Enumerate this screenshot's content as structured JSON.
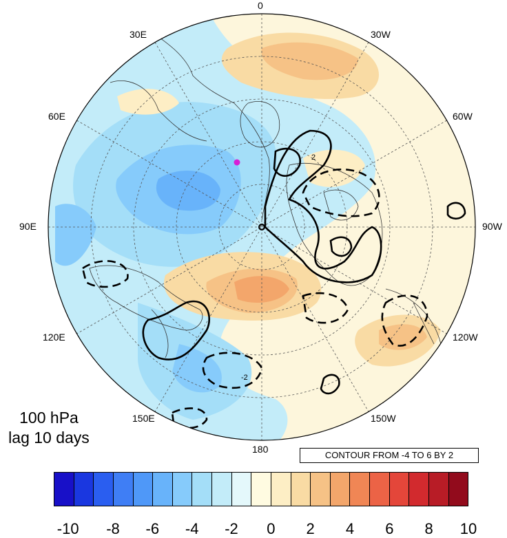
{
  "title_line1": "100 hPa",
  "title_line2": "lag 10 days",
  "contour_note": "CONTOUR FROM -4 TO 6 BY 2",
  "lon_labels": {
    "l0": "0",
    "l30w": "30W",
    "l60w": "60W",
    "l90w": "90W",
    "l120w": "120W",
    "l150w": "150W",
    "l180": "180",
    "l150e": "150E",
    "l120e": "120E",
    "l90e": "90E",
    "l60e": "60E",
    "l30e": "30E"
  },
  "colorbar": {
    "colors": [
      "#1810c8",
      "#1a37e0",
      "#2a5ef0",
      "#3f7ef5",
      "#4f98f8",
      "#68b3fa",
      "#86cbfb",
      "#a4def8",
      "#c3ecf9",
      "#e4f8fb",
      "#fffbe1",
      "#fdeec5",
      "#f9dba4",
      "#f6c286",
      "#f3a66b",
      "#f08655",
      "#ec6346",
      "#e4463a",
      "#d22a2e",
      "#b81c26",
      "#920b1c"
    ],
    "tick_labels": [
      "-10",
      "-8",
      "-6",
      "-4",
      "-2",
      "0",
      "2",
      "4",
      "6",
      "8",
      "10"
    ]
  },
  "contour_labels": [
    "2",
    "-2"
  ],
  "marker_color": "#d61fd6"
}
